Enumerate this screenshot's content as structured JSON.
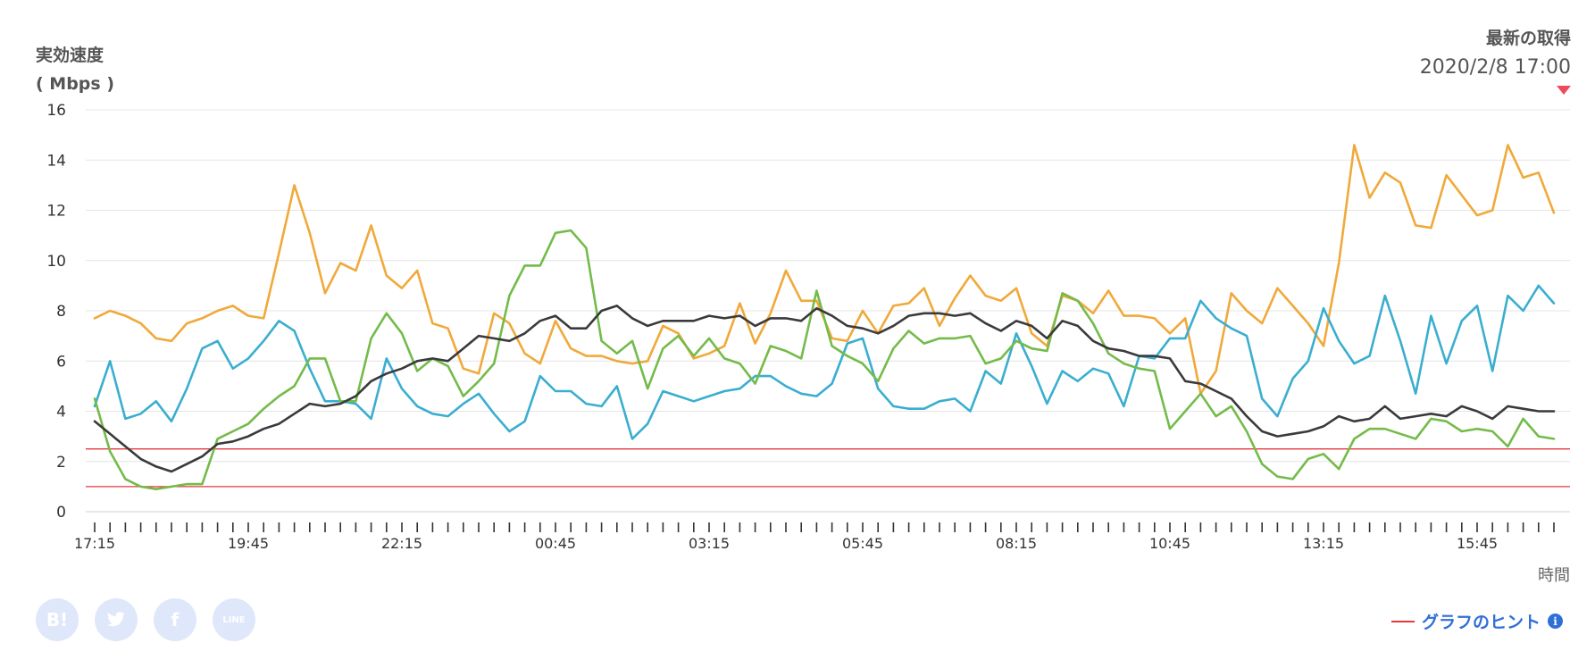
{
  "y_axis": {
    "title": "実効速度",
    "unit": "( Mbps )"
  },
  "latest": {
    "label": "最新の取得",
    "datetime": "2020/2/8 17:00"
  },
  "x_axis": {
    "label": "時間"
  },
  "hint": {
    "label": "グラフのヒント"
  },
  "share": {
    "hatena_icon": "B!",
    "twitter_icon": "twitter-bird",
    "facebook_icon": "f",
    "line_icon": "LINE"
  },
  "colors": {
    "black": "#3a3a3c",
    "orange": "#f0a93a",
    "blue": "#3aaed0",
    "green": "#74bb4a",
    "reference": "#e5393b",
    "grid": "#e4e4e4",
    "accent": "#2f6fd8"
  },
  "chart_data": {
    "type": "line",
    "ylim": [
      0,
      16
    ],
    "yticks": [
      0,
      2,
      4,
      6,
      8,
      10,
      12,
      14,
      16
    ],
    "xtick_labels": [
      "17:15",
      "19:45",
      "22:15",
      "00:45",
      "03:15",
      "05:45",
      "08:15",
      "10:45",
      "13:15",
      "15:45"
    ],
    "x_points": 96,
    "reference_lines": [
      2.5,
      1.0
    ],
    "series": [
      {
        "color": "#3a3a3c",
        "values": [
          3.6,
          3.1,
          2.6,
          2.1,
          1.8,
          1.6,
          1.9,
          2.2,
          2.7,
          2.8,
          3.0,
          3.3,
          3.5,
          3.9,
          4.3,
          4.2,
          4.3,
          4.6,
          5.2,
          5.5,
          5.7,
          6.0,
          6.1,
          6.0,
          6.5,
          7.0,
          6.9,
          6.8,
          7.1,
          7.6,
          7.8,
          7.3,
          7.3,
          8.0,
          8.2,
          7.7,
          7.4,
          7.6,
          7.6,
          7.6,
          7.8,
          7.7,
          7.8,
          7.4,
          7.7,
          7.7,
          7.6,
          8.1,
          7.8,
          7.4,
          7.3,
          7.1,
          7.4,
          7.8,
          7.9,
          7.9,
          7.8,
          7.9,
          7.5,
          7.2,
          7.6,
          7.4,
          6.9,
          7.6,
          7.4,
          6.8,
          6.5,
          6.4,
          6.2,
          6.2,
          6.1,
          5.2,
          5.1,
          4.8,
          4.5,
          3.8,
          3.2,
          3.0,
          3.1,
          3.2,
          3.4,
          3.8,
          3.6,
          3.7,
          4.2,
          3.7,
          3.8,
          3.9,
          3.8,
          4.2,
          4.0,
          3.7,
          4.2,
          4.1,
          4.0,
          4.0
        ]
      },
      {
        "color": "#f0a93a",
        "values": [
          7.7,
          8.0,
          7.8,
          7.5,
          6.9,
          6.8,
          7.5,
          7.7,
          8.0,
          8.2,
          7.8,
          7.7,
          10.3,
          13.0,
          11.1,
          8.7,
          9.9,
          9.6,
          11.4,
          9.4,
          8.9,
          9.6,
          7.5,
          7.3,
          5.7,
          5.5,
          7.9,
          7.5,
          6.3,
          5.9,
          7.6,
          6.5,
          6.2,
          6.2,
          6.0,
          5.9,
          6.0,
          7.4,
          7.1,
          6.1,
          6.3,
          6.6,
          8.3,
          6.7,
          7.9,
          9.6,
          8.4,
          8.4,
          6.9,
          6.8,
          8.0,
          7.1,
          8.2,
          8.3,
          8.9,
          7.4,
          8.5,
          9.4,
          8.6,
          8.4,
          8.9,
          7.1,
          6.6,
          8.6,
          8.4,
          7.9,
          8.8,
          7.8,
          7.8,
          7.7,
          7.1,
          7.7,
          4.7,
          5.6,
          8.7,
          8.0,
          7.5,
          8.9,
          8.2,
          7.5,
          6.6,
          9.9,
          14.6,
          12.5,
          13.5,
          13.1,
          11.4,
          11.3,
          13.4,
          12.6,
          11.8,
          12.0,
          14.6,
          13.3,
          13.5,
          11.9
        ]
      },
      {
        "color": "#3aaed0",
        "values": [
          4.2,
          6.0,
          3.7,
          3.9,
          4.4,
          3.6,
          4.9,
          6.5,
          6.8,
          5.7,
          6.1,
          6.8,
          7.6,
          7.2,
          5.7,
          4.4,
          4.4,
          4.3,
          3.7,
          6.1,
          4.9,
          4.2,
          3.9,
          3.8,
          4.3,
          4.7,
          3.9,
          3.2,
          3.6,
          5.4,
          4.8,
          4.8,
          4.3,
          4.2,
          5.0,
          2.9,
          3.5,
          4.8,
          4.6,
          4.4,
          4.6,
          4.8,
          4.9,
          5.4,
          5.4,
          5.0,
          4.7,
          4.6,
          5.1,
          6.7,
          6.9,
          4.9,
          4.2,
          4.1,
          4.1,
          4.4,
          4.5,
          4.0,
          5.6,
          5.1,
          7.1,
          5.8,
          4.3,
          5.6,
          5.2,
          5.7,
          5.5,
          4.2,
          6.2,
          6.1,
          6.9,
          6.9,
          8.4,
          7.7,
          7.3,
          7.0,
          4.5,
          3.8,
          5.3,
          6.0,
          8.1,
          6.8,
          5.9,
          6.2,
          8.6,
          6.8,
          4.7,
          7.8,
          5.9,
          7.6,
          8.2,
          5.6,
          8.6,
          8.0,
          9.0,
          8.3
        ]
      },
      {
        "color": "#74bb4a",
        "values": [
          4.5,
          2.4,
          1.3,
          1.0,
          0.9,
          1.0,
          1.1,
          1.1,
          2.9,
          3.2,
          3.5,
          4.1,
          4.6,
          5.0,
          6.1,
          6.1,
          4.4,
          4.4,
          6.9,
          7.9,
          7.1,
          5.6,
          6.1,
          5.8,
          4.6,
          5.2,
          5.9,
          8.6,
          9.8,
          9.8,
          11.1,
          11.2,
          10.5,
          6.8,
          6.3,
          6.8,
          4.9,
          6.5,
          7.0,
          6.2,
          6.9,
          6.1,
          5.9,
          5.1,
          6.6,
          6.4,
          6.1,
          8.8,
          6.6,
          6.2,
          5.9,
          5.2,
          6.5,
          7.2,
          6.7,
          6.9,
          6.9,
          7.0,
          5.9,
          6.1,
          6.8,
          6.5,
          6.4,
          8.7,
          8.4,
          7.5,
          6.3,
          5.9,
          5.7,
          5.6,
          3.3,
          4.0,
          4.7,
          3.8,
          4.2,
          3.2,
          1.9,
          1.4,
          1.3,
          2.1,
          2.3,
          1.7,
          2.9,
          3.3,
          3.3,
          3.1,
          2.9,
          3.7,
          3.6,
          3.2,
          3.3,
          3.2,
          2.6,
          3.7,
          3.0,
          2.9
        ]
      }
    ]
  }
}
